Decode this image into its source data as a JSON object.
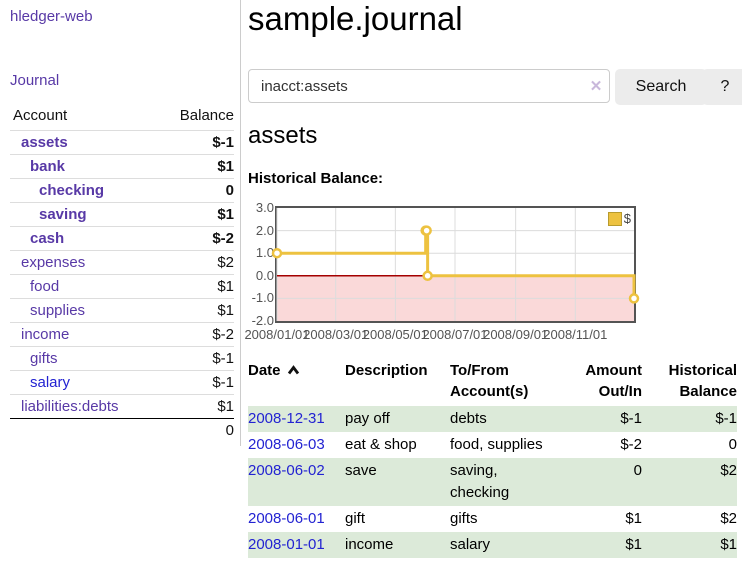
{
  "sidebar": {
    "brand": "hledger-web",
    "nav_journal": "Journal",
    "accounts_table": {
      "headers": {
        "account": "Account",
        "balance": "Balance"
      },
      "rows": [
        {
          "label": "assets",
          "indent": 0,
          "bold": true,
          "blue": false,
          "balance": "$-1",
          "neg": "strong"
        },
        {
          "label": "bank",
          "indent": 1,
          "bold": true,
          "blue": false,
          "balance": "$1",
          "neg": null
        },
        {
          "label": "checking",
          "indent": 2,
          "bold": true,
          "blue": false,
          "balance": "0",
          "neg": null
        },
        {
          "label": "saving",
          "indent": 2,
          "bold": true,
          "blue": false,
          "balance": "$1",
          "neg": null
        },
        {
          "label": "cash",
          "indent": 1,
          "bold": true,
          "blue": false,
          "balance": "$-2",
          "neg": "strong"
        },
        {
          "label": "expenses",
          "indent": 0,
          "bold": false,
          "blue": false,
          "balance": "$2",
          "neg": null
        },
        {
          "label": "food",
          "indent": 1,
          "bold": false,
          "blue": false,
          "balance": "$1",
          "neg": null
        },
        {
          "label": "supplies",
          "indent": 1,
          "bold": false,
          "blue": false,
          "balance": "$1",
          "neg": null
        },
        {
          "label": "income",
          "indent": 0,
          "bold": false,
          "blue": false,
          "balance": "$-2",
          "neg": "soft"
        },
        {
          "label": "gifts",
          "indent": 1,
          "bold": false,
          "blue": false,
          "balance": "$-1",
          "neg": "soft"
        },
        {
          "label": "salary",
          "indent": 1,
          "bold": false,
          "blue": true,
          "balance": "$-1",
          "neg": "soft"
        },
        {
          "label": "liabilities:debts",
          "indent": 0,
          "bold": false,
          "blue": false,
          "balance": "$1",
          "neg": null
        }
      ],
      "total": "0"
    }
  },
  "main": {
    "title": "sample.journal",
    "search": {
      "value": "inacct:assets",
      "clear_icon": "✕",
      "button": "Search",
      "help_button": "?"
    },
    "account_heading": "assets",
    "chart_label": "Historical Balance:",
    "register": {
      "headers": {
        "date": "Date",
        "description": "Description",
        "tofrom": "To/From Account(s)",
        "amount": "Amount Out/In",
        "balance": "Historical Balance"
      },
      "rows": [
        {
          "date": "2008-12-31",
          "description": "pay off",
          "tofrom": "debts",
          "amount": "$-1",
          "amount_negative": true,
          "balance": "$-1",
          "balance_negative": true,
          "shade": true
        },
        {
          "date": "2008-06-03",
          "description": "eat & shop",
          "tofrom": "food, supplies",
          "amount": "$-2",
          "amount_negative": true,
          "balance": "0",
          "balance_negative": false,
          "shade": false
        },
        {
          "date": "2008-06-02",
          "description": "save",
          "tofrom": "saving,\nchecking",
          "amount": "0",
          "amount_negative": false,
          "balance": "$2",
          "balance_negative": false,
          "shade": true
        },
        {
          "date": "2008-06-01",
          "description": "gift",
          "tofrom": "gifts",
          "amount": "$1",
          "amount_negative": false,
          "balance": "$2",
          "balance_negative": false,
          "shade": false
        },
        {
          "date": "2008-01-01",
          "description": "income",
          "tofrom": "salary",
          "amount": "$1",
          "amount_negative": false,
          "balance": "$1",
          "balance_negative": false,
          "shade": true
        }
      ]
    }
  },
  "chart_data": {
    "type": "line",
    "step": true,
    "title": "Historical Balance",
    "legend": [
      {
        "label": "$",
        "color": "#EDC240"
      }
    ],
    "legend_position": "top-right",
    "grid": true,
    "x_min": "2008-01-01",
    "x_max": "2008-12-31",
    "ylim": [
      -2,
      3
    ],
    "yticks": [
      {
        "value": 3,
        "label": "3.0"
      },
      {
        "value": 2,
        "label": "2.0"
      },
      {
        "value": 1,
        "label": "1.0"
      },
      {
        "value": 0,
        "label": "0.0"
      },
      {
        "value": -1,
        "label": "-1.0"
      },
      {
        "value": -2,
        "label": "-2.0"
      }
    ],
    "xticks": [
      {
        "date": "2008-01-01",
        "label": "2008/01/01"
      },
      {
        "date": "2008-03-01",
        "label": "2008/03/01"
      },
      {
        "date": "2008-05-01",
        "label": "2008/05/01"
      },
      {
        "date": "2008-07-01",
        "label": "2008/07/01"
      },
      {
        "date": "2008-09-01",
        "label": "2008/09/01"
      },
      {
        "date": "2008-11-01",
        "label": "2008/11/01"
      }
    ],
    "series": [
      {
        "name": "$",
        "color": "#EDC240",
        "points": [
          {
            "date": "2008-01-01",
            "value": 1
          },
          {
            "date": "2008-06-01",
            "value": 2
          },
          {
            "date": "2008-06-02",
            "value": 2
          },
          {
            "date": "2008-06-03",
            "value": 0
          },
          {
            "date": "2008-12-31",
            "value": -1
          }
        ]
      }
    ],
    "negative_region_color": "#FAD9D9",
    "zero_line_color": "#A40000",
    "grid_color": "#DCDCDC",
    "border_color": "#545454"
  },
  "colors": {
    "link_purple": "#5839A6",
    "link_blue": "#2323D2",
    "negative_strong": "#8B1A1A",
    "negative_soft": "#BB7D7D",
    "row_shade_green": "#DCEAD9",
    "series_gold": "#EDC240"
  }
}
